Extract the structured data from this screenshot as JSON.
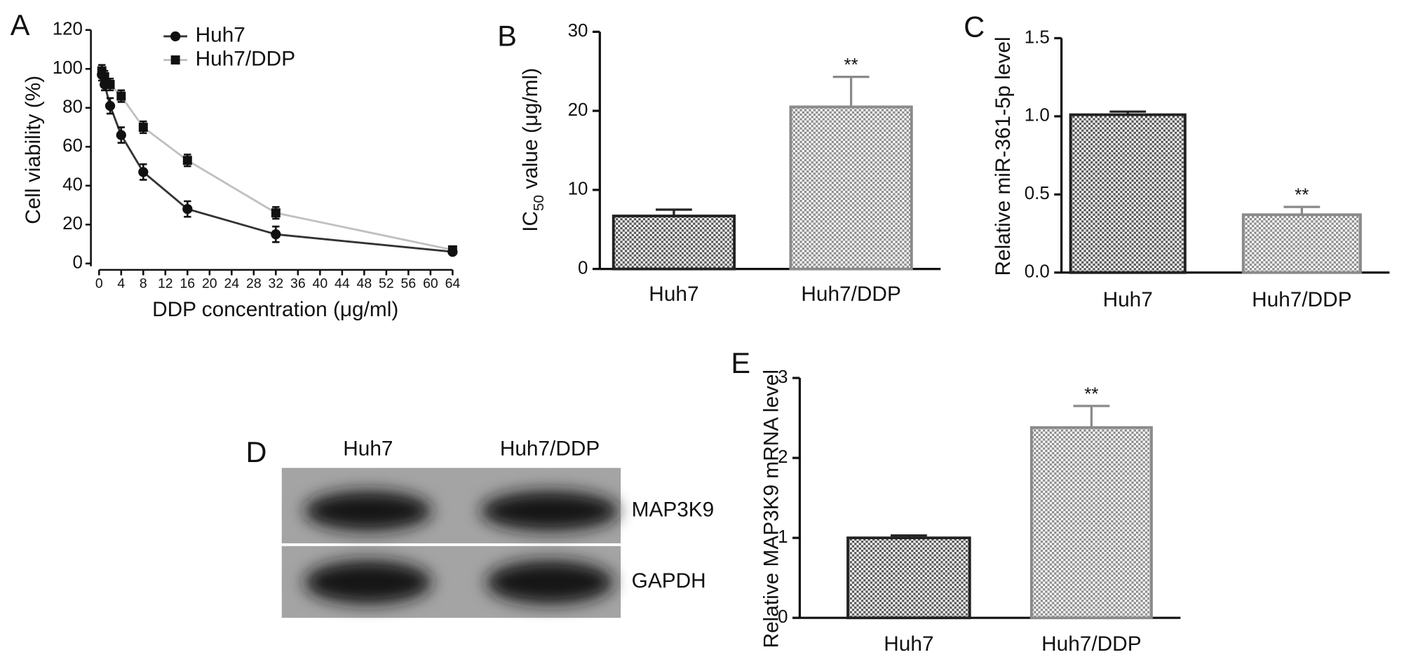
{
  "chart_data": [
    {
      "type": "line",
      "panel": "A",
      "xlabel": "DDP concentration (μg/ml)",
      "ylabel": "Cell viability (%)",
      "xlim": [
        0,
        64
      ],
      "xticks": [
        0,
        4,
        8,
        12,
        16,
        20,
        24,
        28,
        32,
        36,
        40,
        44,
        48,
        52,
        56,
        60,
        64
      ],
      "ylim": [
        0,
        120
      ],
      "yticks": [
        0,
        20,
        40,
        60,
        80,
        100,
        120
      ],
      "x": [
        0.5,
        1,
        2,
        4,
        8,
        16,
        32,
        64
      ],
      "series": [
        {
          "name": "Huh7",
          "color": "#333333",
          "marker": "circle",
          "marker_color": "#111111",
          "values": [
            97,
            92,
            81,
            66,
            47,
            28,
            15,
            6
          ],
          "errors": [
            3,
            3,
            4,
            4,
            4,
            4,
            4,
            1
          ]
        },
        {
          "name": "Huh7/DDP",
          "color": "#c0c0c0",
          "marker": "square",
          "marker_color": "#111111",
          "values": [
            99,
            96,
            92,
            86,
            70,
            53,
            26,
            7
          ],
          "errors": [
            3,
            3,
            3,
            3,
            3,
            3,
            3,
            1
          ]
        }
      ]
    },
    {
      "type": "bar",
      "panel": "B",
      "ylabel_parts": [
        "IC",
        "50",
        " value (μg/ml)"
      ],
      "categories": [
        "Huh7",
        "Huh7/DDP"
      ],
      "values": [
        6.7,
        20.5
      ],
      "errors": [
        0.8,
        3.8
      ],
      "annotations": [
        null,
        "**"
      ],
      "colors": [
        "#222222",
        "#8a8a8a"
      ],
      "ylim": [
        0,
        30
      ],
      "yticks": [
        0,
        10,
        20,
        30
      ]
    },
    {
      "type": "bar",
      "panel": "C",
      "ylabel": "Relative miR-361-5p level",
      "categories": [
        "Huh7",
        "Huh7/DDP"
      ],
      "values": [
        1.01,
        0.37
      ],
      "errors": [
        0.02,
        0.05
      ],
      "annotations": [
        null,
        "**"
      ],
      "colors": [
        "#222222",
        "#8a8a8a"
      ],
      "ylim": [
        0,
        1.5
      ],
      "yticks": [
        {
          "value": 0,
          "label": "0.0"
        },
        0.5,
        {
          "value": 1,
          "label": "1.0"
        },
        1.5
      ]
    },
    {
      "type": "blot",
      "panel": "D",
      "lanes": [
        "Huh7",
        "Huh7/DDP"
      ],
      "bands": [
        "MAP3K9",
        "GAPDH"
      ]
    },
    {
      "type": "bar",
      "panel": "E",
      "ylabel": "Relative MAP3K9 mRNA level",
      "categories": [
        "Huh7",
        "Huh7/DDP"
      ],
      "values": [
        1.0,
        2.38
      ],
      "errors": [
        0.03,
        0.27
      ],
      "annotations": [
        null,
        "**"
      ],
      "colors": [
        "#222222",
        "#8a8a8a"
      ],
      "ylim": [
        0,
        3
      ],
      "yticks": [
        0,
        1,
        2,
        3
      ]
    }
  ]
}
